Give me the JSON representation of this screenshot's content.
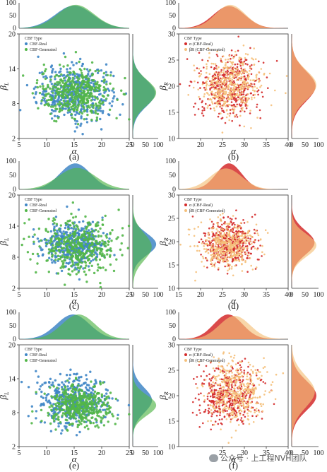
{
  "colors": {
    "real_left": "#3f86c6",
    "gen_left": "#52b648",
    "overlap_left": "#2a8a7e",
    "real_right": "#d42a2a",
    "gen_right": "#f5c07a",
    "overlap_right": "#ee6a47"
  },
  "watermark": {
    "text": "公众号 · 上工程NVH团队",
    "icon": "wechat-icon"
  },
  "chart_data": [
    {
      "panel": "(a)",
      "type": "scatter",
      "xlabel": "α",
      "ylabel": "βL",
      "xlim": [
        5,
        25
      ],
      "ylim": [
        2,
        20
      ],
      "xticks": [
        "5",
        "10",
        "15",
        "20",
        "25"
      ],
      "yticks": [
        "2",
        "8",
        "14",
        "20"
      ],
      "top_marginal_yticks": [
        "0",
        "50",
        "100"
      ],
      "side_marginal_xticks": [
        "0",
        "50",
        "100"
      ],
      "legend": {
        "title": "CBF Type",
        "entries": [
          "CBF-Real",
          "CBF-Generated"
        ],
        "placement": "top-left"
      },
      "series": [
        {
          "name": "CBF-Real",
          "x_mean": 15,
          "x_sd": 3.4,
          "y_mean": 9.8,
          "y_sd": 2.3,
          "n": 420
        },
        {
          "name": "CBF-Generated",
          "x_mean": 15.3,
          "x_sd": 3.3,
          "y_mean": 9.9,
          "y_sd": 2.2,
          "n": 420
        }
      ]
    },
    {
      "panel": "(b)",
      "type": "scatter",
      "xlabel": "α",
      "ylabel": "βR",
      "xlim": [
        15,
        40
      ],
      "ylim": [
        10,
        30
      ],
      "xticks": [
        "20",
        "25",
        "30",
        "35",
        "40"
      ],
      "yticks": [
        "10",
        "15",
        "20",
        "25",
        "30"
      ],
      "top_marginal_yticks": [
        "0",
        "50",
        "100"
      ],
      "side_marginal_xticks": [
        "0",
        "50",
        "100"
      ],
      "legend": {
        "title": "CBF Type",
        "entries": [
          "α (CBF-Real)",
          "βR (CBF-Generated)"
        ],
        "placement": "top-left"
      },
      "series": [
        {
          "name": "α (CBF-Real)",
          "x_mean": 26.5,
          "x_sd": 3.6,
          "y_mean": 20,
          "y_sd": 2.9,
          "n": 420
        },
        {
          "name": "βR (CBF-Generated)",
          "x_mean": 26.8,
          "x_sd": 3.4,
          "y_mean": 20.2,
          "y_sd": 2.8,
          "n": 420
        }
      ]
    },
    {
      "panel": "(c)",
      "type": "scatter",
      "xlabel": "α",
      "ylabel": "βL",
      "xlim": [
        5,
        25
      ],
      "ylim": [
        2,
        20
      ],
      "xticks": [
        "5",
        "10",
        "15",
        "20",
        "25"
      ],
      "yticks": [
        "2",
        "8",
        "14",
        "20"
      ],
      "top_marginal_yticks": [
        "0",
        "50",
        "100"
      ],
      "side_marginal_xticks": [
        "0",
        "50",
        "100"
      ],
      "legend": {
        "title": "CBF Type",
        "entries": [
          "CBF-Real",
          "CBF-Generated"
        ],
        "placement": "top-left"
      },
      "series": [
        {
          "name": "CBF-Real",
          "x_mean": 15.2,
          "x_sd": 2.8,
          "y_mean": 10.5,
          "y_sd": 2.1,
          "n": 420
        },
        {
          "name": "CBF-Generated",
          "x_mean": 15.5,
          "x_sd": 3.4,
          "y_mean": 10,
          "y_sd": 2.6,
          "n": 420
        }
      ]
    },
    {
      "panel": "(d)",
      "type": "scatter",
      "xlabel": "α",
      "ylabel": "βR",
      "xlim": [
        15,
        40
      ],
      "ylim": [
        10,
        30
      ],
      "xticks": [
        "15",
        "20",
        "25",
        "30",
        "35",
        "40"
      ],
      "yticks": [
        "10",
        "15",
        "20",
        "25",
        "30"
      ],
      "top_marginal_yticks": [
        "0",
        "50",
        "100"
      ],
      "side_marginal_xticks": [
        "0",
        "50",
        "100"
      ],
      "legend": {
        "title": "CBF Type",
        "entries": [
          "α (CBF-Real)",
          "βR (CBF-Generated)"
        ],
        "placement": "top-left"
      },
      "series": [
        {
          "name": "α (CBF-Real)",
          "x_mean": 26.5,
          "x_sd": 2.9,
          "y_mean": 19.8,
          "y_sd": 2.6,
          "n": 420
        },
        {
          "name": "βR (CBF-Generated)",
          "x_mean": 25.8,
          "x_sd": 3.6,
          "y_mean": 19.2,
          "y_sd": 2.4,
          "n": 420
        }
      ]
    },
    {
      "panel": "(e)",
      "type": "scatter",
      "xlabel": "α",
      "ylabel": "βL",
      "xlim": [
        5,
        25
      ],
      "ylim": [
        2,
        20
      ],
      "xticks": [
        "5",
        "10",
        "15",
        "20",
        "25"
      ],
      "yticks": [
        "2",
        "8",
        "14",
        "20"
      ],
      "top_marginal_yticks": [
        "0",
        "50",
        "100"
      ],
      "side_marginal_xticks": [
        "0",
        "50",
        "100"
      ],
      "legend": {
        "title": "CBF Type",
        "entries": [
          "CBF-Real",
          "CBF-Generated"
        ],
        "placement": "top-left"
      },
      "series": [
        {
          "name": "CBF-Real",
          "x_mean": 14.8,
          "x_sd": 3.0,
          "y_mean": 10.2,
          "y_sd": 2.2,
          "n": 420
        },
        {
          "name": "CBF-Generated",
          "x_mean": 15.8,
          "x_sd": 3.0,
          "y_mean": 9.3,
          "y_sd": 1.8,
          "n": 420
        }
      ]
    },
    {
      "panel": "(f)",
      "type": "scatter",
      "xlabel": "α",
      "ylabel": "βR",
      "xlim": [
        15,
        40
      ],
      "ylim": [
        10,
        30
      ],
      "xticks": [
        "25",
        "30",
        "35",
        "40"
      ],
      "yticks": [
        "10",
        "15",
        "20",
        "25",
        "30"
      ],
      "top_marginal_yticks": [
        "0",
        "50",
        "100"
      ],
      "side_marginal_xticks": [
        "0",
        "50",
        "100"
      ],
      "legend": {
        "title": "CBF Type",
        "entries": [
          "α (CBF-Real)",
          "βR (CBF-Generated)"
        ],
        "placement": "top-left"
      },
      "series": [
        {
          "name": "α (CBF-Real)",
          "x_mean": 26.3,
          "x_sd": 3.3,
          "y_mean": 20,
          "y_sd": 2.9,
          "n": 420
        },
        {
          "name": "βR (CBF-Generated)",
          "x_mean": 27.8,
          "x_sd": 3.5,
          "y_mean": 20.8,
          "y_sd": 3.1,
          "n": 420
        }
      ]
    }
  ]
}
